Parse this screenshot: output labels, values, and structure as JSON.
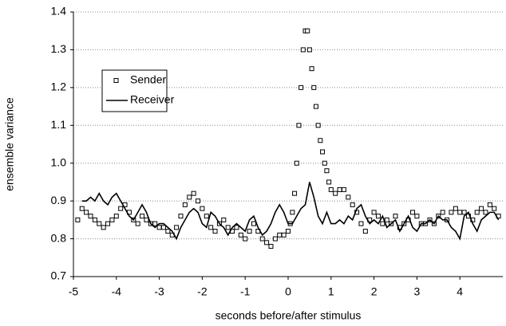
{
  "chart_data": {
    "type": "line",
    "xlabel": "seconds before/after stimulus",
    "ylabel": "ensemble variance",
    "xlim": [
      -5,
      5
    ],
    "xticks": [
      -5,
      -4,
      -3,
      -2,
      -1,
      0,
      1,
      2,
      3,
      4
    ],
    "ylim": [
      0.7,
      1.4
    ],
    "yticks": [
      0.7,
      0.8,
      0.9,
      {
        "value": 1,
        "label": "1.0"
      },
      1.1,
      1.2,
      1.3,
      1.4
    ],
    "grid": true,
    "legend": "center left",
    "series": [
      {
        "name": "Sender",
        "color": "#000000",
        "mode": "markers",
        "x": [
          -4.9,
          -4.8,
          -4.7,
          -4.6,
          -4.5,
          -4.4,
          -4.3,
          -4.2,
          -4.1,
          -4.0,
          -3.9,
          -3.8,
          -3.7,
          -3.6,
          -3.5,
          -3.4,
          -3.3,
          -3.2,
          -3.1,
          -3.0,
          -2.9,
          -2.8,
          -2.7,
          -2.6,
          -2.5,
          -2.4,
          -2.3,
          -2.2,
          -2.1,
          -2.0,
          -1.9,
          -1.8,
          -1.7,
          -1.6,
          -1.5,
          -1.4,
          -1.3,
          -1.2,
          -1.1,
          -1.0,
          -0.9,
          -0.8,
          -0.7,
          -0.6,
          -0.5,
          -0.4,
          -0.3,
          -0.2,
          -0.1,
          0.0,
          0.05,
          0.1,
          0.15,
          0.2,
          0.25,
          0.3,
          0.35,
          0.4,
          0.45,
          0.5,
          0.55,
          0.6,
          0.65,
          0.7,
          0.75,
          0.8,
          0.85,
          0.9,
          0.95,
          1.0,
          1.1,
          1.2,
          1.3,
          1.4,
          1.5,
          1.6,
          1.7,
          1.8,
          1.9,
          2.0,
          2.1,
          2.2,
          2.3,
          2.4,
          2.5,
          2.6,
          2.7,
          2.8,
          2.9,
          3.0,
          3.1,
          3.2,
          3.3,
          3.4,
          3.5,
          3.6,
          3.7,
          3.8,
          3.9,
          4.0,
          4.1,
          4.2,
          4.3,
          4.4,
          4.5,
          4.6,
          4.7,
          4.8,
          4.9
        ],
        "values": [
          0.85,
          0.88,
          0.87,
          0.86,
          0.85,
          0.84,
          0.83,
          0.84,
          0.85,
          0.86,
          0.88,
          0.89,
          0.87,
          0.85,
          0.84,
          0.86,
          0.85,
          0.84,
          0.84,
          0.83,
          0.83,
          0.82,
          0.81,
          0.83,
          0.86,
          0.89,
          0.91,
          0.92,
          0.9,
          0.88,
          0.86,
          0.83,
          0.82,
          0.84,
          0.85,
          0.83,
          0.82,
          0.83,
          0.81,
          0.8,
          0.82,
          0.84,
          0.82,
          0.8,
          0.79,
          0.78,
          0.8,
          0.81,
          0.81,
          0.82,
          0.84,
          0.87,
          0.92,
          1.0,
          1.1,
          1.2,
          1.3,
          1.35,
          1.35,
          1.3,
          1.25,
          1.2,
          1.15,
          1.1,
          1.06,
          1.03,
          1.0,
          0.98,
          0.95,
          0.93,
          0.92,
          0.93,
          0.93,
          0.91,
          0.89,
          0.87,
          0.84,
          0.82,
          0.85,
          0.87,
          0.86,
          0.84,
          0.85,
          0.84,
          0.86,
          0.83,
          0.84,
          0.85,
          0.87,
          0.86,
          0.84,
          0.84,
          0.85,
          0.84,
          0.86,
          0.87,
          0.85,
          0.87,
          0.88,
          0.87,
          0.87,
          0.86,
          0.85,
          0.87,
          0.88,
          0.87,
          0.89,
          0.88,
          0.86
        ]
      },
      {
        "name": "Receiver",
        "color": "#000000",
        "mode": "lines",
        "x": [
          -4.8,
          -4.7,
          -4.6,
          -4.5,
          -4.4,
          -4.3,
          -4.2,
          -4.1,
          -4.0,
          -3.9,
          -3.8,
          -3.7,
          -3.6,
          -3.5,
          -3.4,
          -3.3,
          -3.2,
          -3.1,
          -3.0,
          -2.9,
          -2.8,
          -2.7,
          -2.6,
          -2.5,
          -2.4,
          -2.3,
          -2.2,
          -2.1,
          -2.0,
          -1.9,
          -1.8,
          -1.7,
          -1.6,
          -1.5,
          -1.4,
          -1.3,
          -1.2,
          -1.1,
          -1.0,
          -0.9,
          -0.8,
          -0.7,
          -0.6,
          -0.5,
          -0.4,
          -0.3,
          -0.2,
          -0.1,
          0.0,
          0.1,
          0.2,
          0.3,
          0.4,
          0.5,
          0.6,
          0.7,
          0.8,
          0.9,
          1.0,
          1.1,
          1.2,
          1.3,
          1.4,
          1.5,
          1.6,
          1.7,
          1.8,
          1.9,
          2.0,
          2.1,
          2.2,
          2.3,
          2.4,
          2.5,
          2.6,
          2.7,
          2.8,
          2.9,
          3.0,
          3.1,
          3.2,
          3.3,
          3.4,
          3.5,
          3.6,
          3.7,
          3.8,
          3.9,
          4.0,
          4.1,
          4.2,
          4.3,
          4.4,
          4.5,
          4.6,
          4.7,
          4.8,
          4.9
        ],
        "values": [
          0.9,
          0.9,
          0.91,
          0.9,
          0.92,
          0.9,
          0.89,
          0.91,
          0.92,
          0.9,
          0.88,
          0.86,
          0.85,
          0.87,
          0.89,
          0.87,
          0.84,
          0.83,
          0.84,
          0.84,
          0.83,
          0.82,
          0.8,
          0.83,
          0.85,
          0.87,
          0.88,
          0.87,
          0.84,
          0.83,
          0.87,
          0.86,
          0.84,
          0.83,
          0.81,
          0.83,
          0.84,
          0.83,
          0.82,
          0.85,
          0.86,
          0.83,
          0.81,
          0.82,
          0.84,
          0.87,
          0.89,
          0.87,
          0.84,
          0.84,
          0.86,
          0.88,
          0.89,
          0.95,
          0.91,
          0.86,
          0.84,
          0.87,
          0.84,
          0.84,
          0.85,
          0.84,
          0.86,
          0.85,
          0.88,
          0.89,
          0.86,
          0.84,
          0.85,
          0.84,
          0.86,
          0.83,
          0.84,
          0.85,
          0.82,
          0.84,
          0.86,
          0.83,
          0.82,
          0.84,
          0.84,
          0.85,
          0.84,
          0.86,
          0.85,
          0.85,
          0.83,
          0.82,
          0.8,
          0.86,
          0.87,
          0.84,
          0.82,
          0.85,
          0.86,
          0.87,
          0.87,
          0.85
        ]
      }
    ]
  }
}
